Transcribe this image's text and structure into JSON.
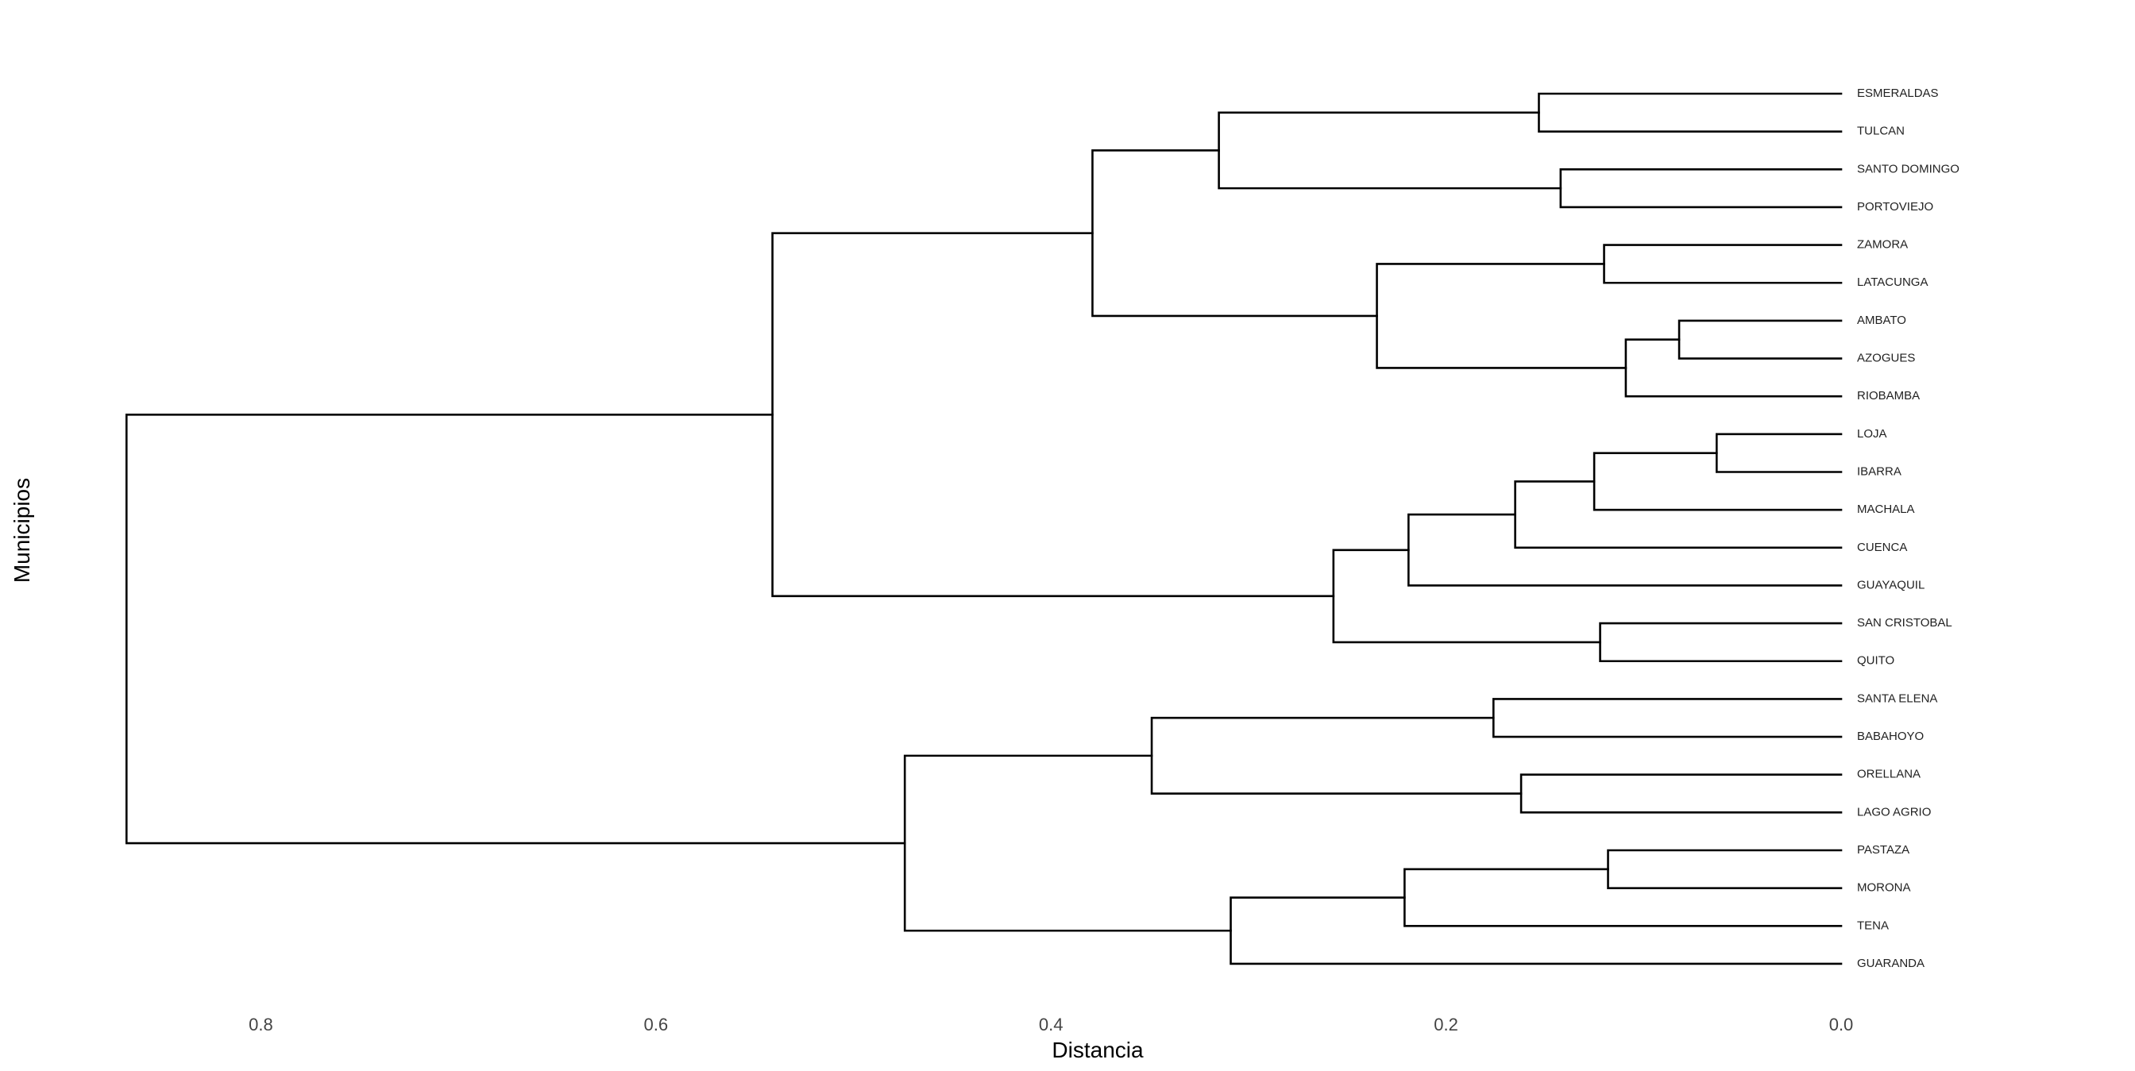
{
  "chart_data": {
    "type": "dendrogram",
    "title": "",
    "xlabel": "Distancia",
    "ylabel": "Municipios",
    "xlim": [
      0.868,
      -0.1
    ],
    "xticks": [
      0.8,
      0.6,
      0.4,
      0.2,
      0.0
    ],
    "xtick_labels": [
      "0.8",
      "0.6",
      "0.4",
      "0.2",
      "0.0"
    ],
    "leaves": [
      "ESMERALDAS",
      "TULCAN",
      "SANTO DOMINGO",
      "PORTOVIEJO",
      "ZAMORA",
      "LATACUNGA",
      "AMBATO",
      "AZOGUES",
      "RIOBAMBA",
      "LOJA",
      "IBARRA",
      "MACHALA",
      "CUENCA",
      "GUAYAQUIL",
      "SAN CRISTOBAL",
      "QUITO",
      "SANTA ELENA",
      "BABAHOYO",
      "ORELLANA",
      "LAGO AGRIO",
      "PASTAZA",
      "MORONA",
      "TENA",
      "GUARANDA"
    ],
    "merges": [
      {
        "id": "n1",
        "left": "ESMERALDAS",
        "right": "TULCAN",
        "height": 0.153
      },
      {
        "id": "n2",
        "left": "SANTO DOMINGO",
        "right": "PORTOVIEJO",
        "height": 0.142
      },
      {
        "id": "n3",
        "left": "n1",
        "right": "n2",
        "height": 0.315
      },
      {
        "id": "n4",
        "left": "ZAMORA",
        "right": "LATACUNGA",
        "height": 0.12
      },
      {
        "id": "n5",
        "left": "AMBATO",
        "right": "AZOGUES",
        "height": 0.082
      },
      {
        "id": "n6",
        "left": "n5",
        "right": "RIOBAMBA",
        "height": 0.109
      },
      {
        "id": "n7",
        "left": "n4",
        "right": "n6",
        "height": 0.235
      },
      {
        "id": "n8",
        "left": "n3",
        "right": "n7",
        "height": 0.379
      },
      {
        "id": "n9",
        "left": "LOJA",
        "right": "IBARRA",
        "height": 0.063
      },
      {
        "id": "n10",
        "left": "n9",
        "right": "MACHALA",
        "height": 0.125
      },
      {
        "id": "n11",
        "left": "n10",
        "right": "CUENCA",
        "height": 0.165
      },
      {
        "id": "n12",
        "left": "n11",
        "right": "GUAYAQUIL",
        "height": 0.219
      },
      {
        "id": "n13",
        "left": "SAN CRISTOBAL",
        "right": "QUITO",
        "height": 0.122
      },
      {
        "id": "n14",
        "left": "n12",
        "right": "n13",
        "height": 0.257
      },
      {
        "id": "n15",
        "left": "n8",
        "right": "n14",
        "height": 0.541
      },
      {
        "id": "n16",
        "left": "SANTA ELENA",
        "right": "BABAHOYO",
        "height": 0.176
      },
      {
        "id": "n17",
        "left": "ORELLANA",
        "right": "LAGO AGRIO",
        "height": 0.162
      },
      {
        "id": "n18",
        "left": "n16",
        "right": "n17",
        "height": 0.349
      },
      {
        "id": "n19",
        "left": "PASTAZA",
        "right": "MORONA",
        "height": 0.118
      },
      {
        "id": "n20",
        "left": "n19",
        "right": "TENA",
        "height": 0.221
      },
      {
        "id": "n21",
        "left": "n20",
        "right": "GUARANDA",
        "height": 0.309
      },
      {
        "id": "n22",
        "left": "n18",
        "right": "n21",
        "height": 0.474
      },
      {
        "id": "n23",
        "left": "n15",
        "right": "n22",
        "height": 0.868
      }
    ]
  },
  "colors": {
    "branch": "#000000",
    "leaf_text": "#222222",
    "tick_text": "#444444",
    "background": "#ffffff"
  }
}
